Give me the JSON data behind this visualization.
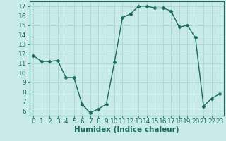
{
  "x": [
    0,
    1,
    2,
    3,
    4,
    5,
    6,
    7,
    8,
    9,
    10,
    11,
    12,
    13,
    14,
    15,
    16,
    17,
    18,
    19,
    20,
    21,
    22,
    23
  ],
  "y": [
    11.8,
    11.2,
    11.2,
    11.3,
    9.5,
    9.5,
    6.7,
    5.8,
    6.2,
    6.7,
    11.1,
    15.8,
    16.2,
    17.0,
    17.0,
    16.8,
    16.8,
    16.5,
    14.8,
    15.0,
    13.7,
    6.5,
    7.3,
    7.8
  ],
  "line_color": "#1a6b5e",
  "marker": "D",
  "markersize": 2.5,
  "linewidth": 1.0,
  "background_color": "#c8eae8",
  "grid_color": "#b0d8d4",
  "xlabel": "Humidex (Indice chaleur)",
  "xlim": [
    -0.5,
    23.5
  ],
  "ylim": [
    5.5,
    17.5
  ],
  "xticks": [
    0,
    1,
    2,
    3,
    4,
    5,
    6,
    7,
    8,
    9,
    10,
    11,
    12,
    13,
    14,
    15,
    16,
    17,
    18,
    19,
    20,
    21,
    22,
    23
  ],
  "yticks": [
    6,
    7,
    8,
    9,
    10,
    11,
    12,
    13,
    14,
    15,
    16,
    17
  ],
  "ytick_labels": [
    "6",
    "7",
    "8",
    "9",
    "10",
    "11",
    "12",
    "13",
    "14",
    "15",
    "16",
    "17"
  ],
  "tick_color": "#1a6b5e",
  "label_color": "#1a6b5e",
  "label_fontsize": 7.5,
  "tick_fontsize": 6.5
}
